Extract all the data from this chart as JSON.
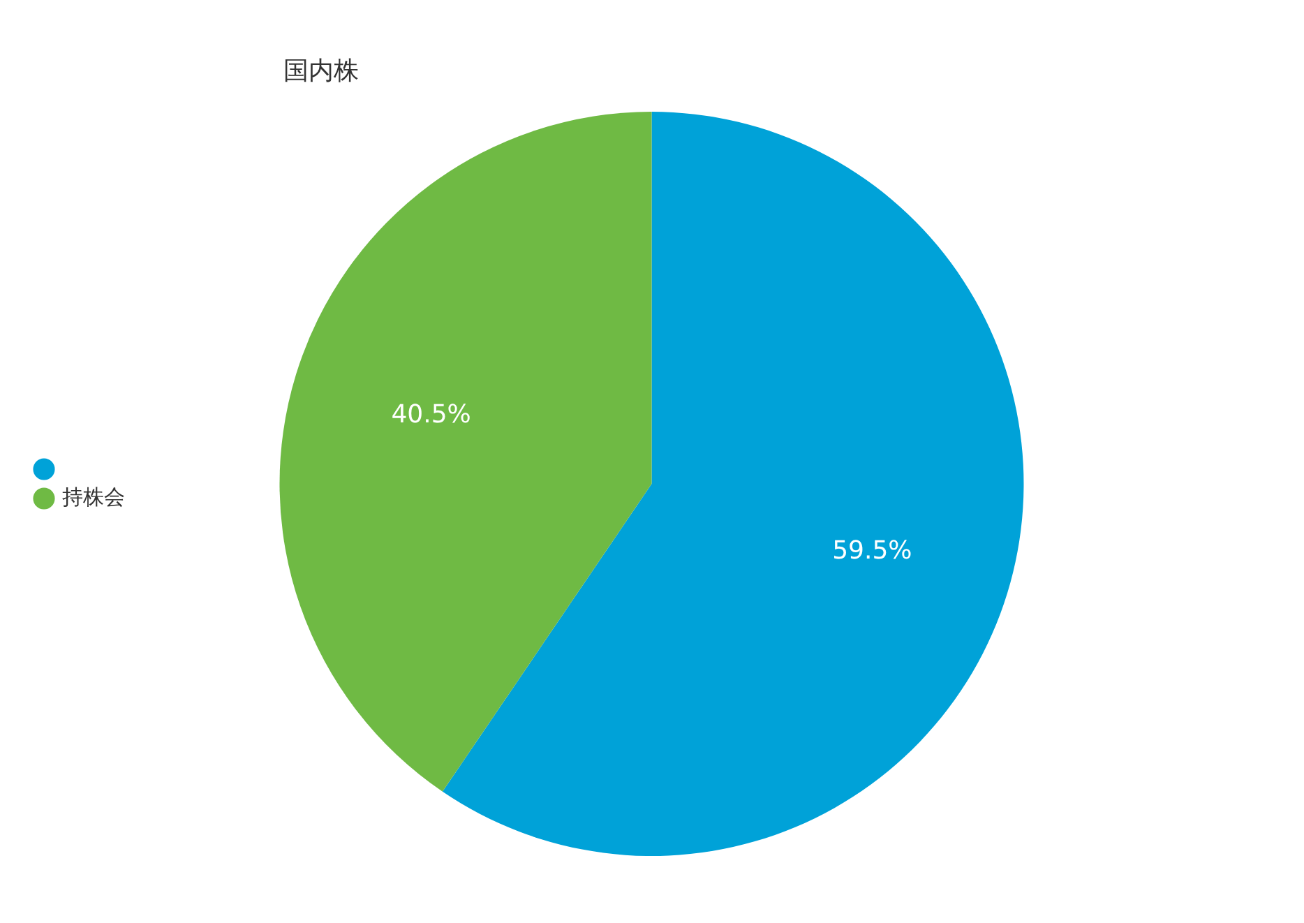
{
  "chart_data": {
    "type": "pie",
    "title": "国内株",
    "categories": [
      null,
      "持株会"
    ],
    "values": [
      59.5,
      40.5
    ],
    "colors": [
      "#00a2d8",
      "#6fba44"
    ],
    "value_labels": [
      "59.5%",
      "40.5%"
    ],
    "legend": "left"
  }
}
